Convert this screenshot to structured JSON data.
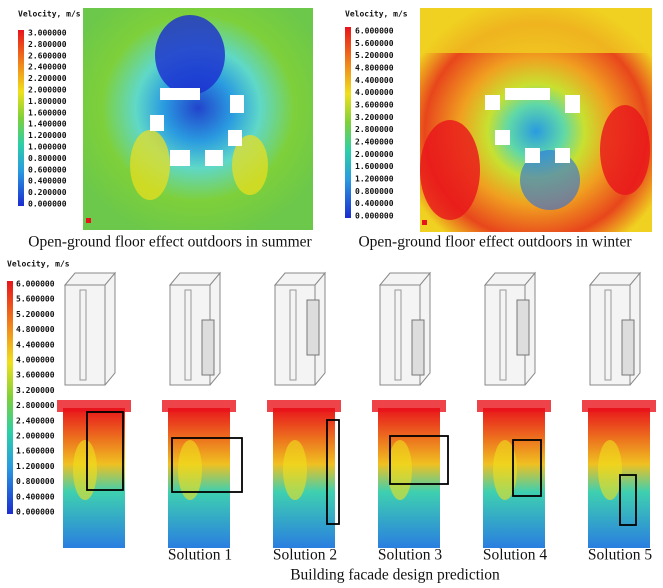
{
  "summer": {
    "legend": {
      "title": "Velocity, m/s",
      "labels": [
        "3.000000",
        "2.800000",
        "2.600000",
        "2.400000",
        "2.200000",
        "2.000000",
        "1.800000",
        "1.600000",
        "1.400000",
        "1.200000",
        "1.000000",
        "0.800000",
        "0.600000",
        "0.400000",
        "0.200000",
        "0.000000"
      ]
    },
    "caption": "Open-ground floor effect outdoors in summer"
  },
  "winter": {
    "legend": {
      "title": "Velocity, m/s",
      "labels": [
        "6.000000",
        "5.600000",
        "5.200000",
        "4.800000",
        "4.400000",
        "4.000000",
        "3.600000",
        "3.200000",
        "2.800000",
        "2.400000",
        "2.000000",
        "1.600000",
        "1.200000",
        "0.800000",
        "0.400000",
        "0.000000"
      ]
    },
    "caption": "Open-ground floor effect outdoors in winter"
  },
  "facade": {
    "legend": {
      "title": "Velocity, m/s",
      "labels": [
        "6.000000",
        "5.600000",
        "5.200000",
        "4.800000",
        "4.400000",
        "4.000000",
        "3.600000",
        "3.200000",
        "2.800000",
        "2.400000",
        "2.000000",
        "1.600000",
        "1.200000",
        "0.800000",
        "0.400000",
        "0.000000"
      ]
    },
    "solutions": [
      "Solution 1",
      "Solution 2",
      "Solution 3",
      "Solution 4",
      "Solution 5"
    ],
    "caption": "Building facade design prediction"
  }
}
